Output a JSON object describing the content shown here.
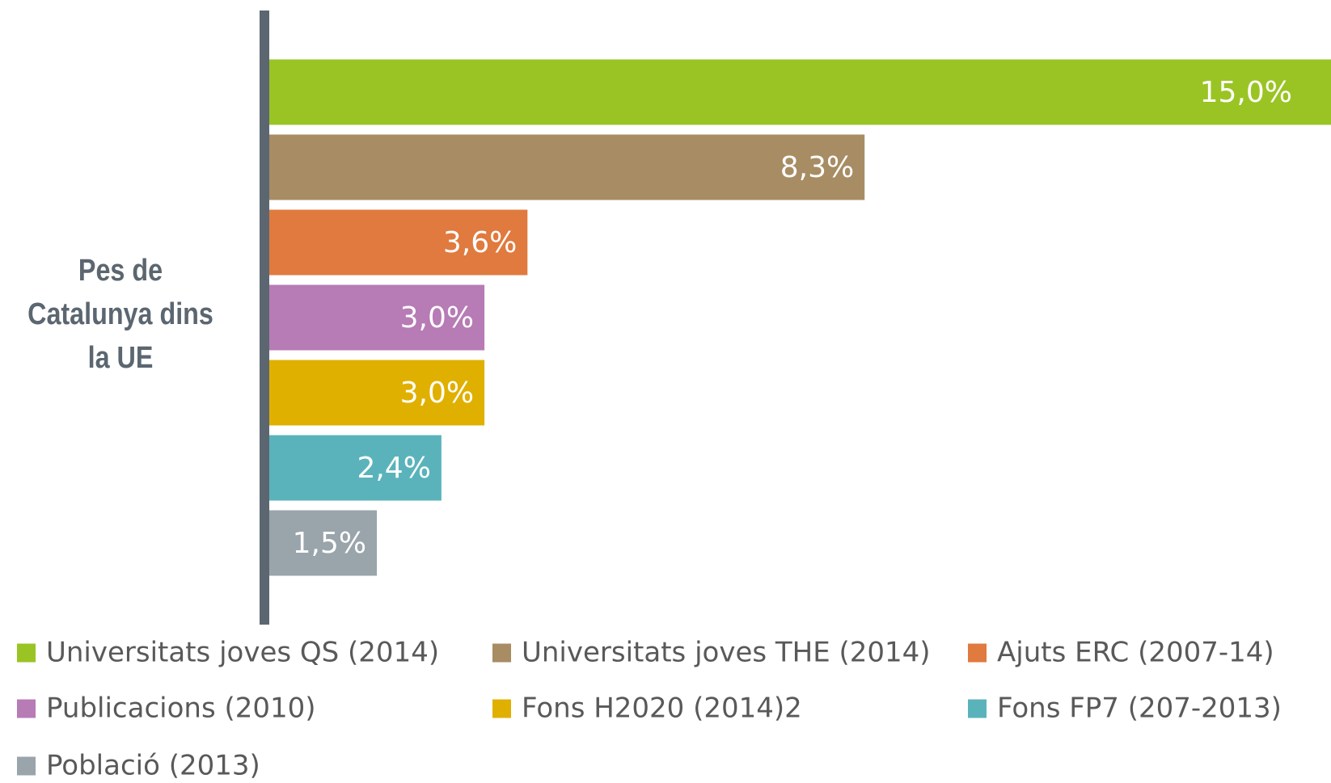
{
  "chart_data": {
    "type": "bar",
    "orientation": "horizontal",
    "y_label": "Pes de Catalunya dins la UE",
    "series": [
      {
        "name": "Universitats joves QS (2014)",
        "color": "#9ac424",
        "values": [
          15.0
        ],
        "value_labels": [
          "15,0%"
        ]
      },
      {
        "name": "Universitats joves THE (2014)",
        "color": "#a88c63",
        "values": [
          8.3
        ],
        "value_labels": [
          "8,3%"
        ]
      },
      {
        "name": "Ajuts ERC (2007-14)",
        "color": "#e07a3e",
        "values": [
          3.6
        ],
        "value_labels": [
          "3,6%"
        ]
      },
      {
        "name": "Publicacions (2010)",
        "color": "#b77bb5",
        "values": [
          3.0
        ],
        "value_labels": [
          "3,0%"
        ]
      },
      {
        "name": "Fons H2020 (2014)2",
        "color": "#e0b000",
        "values": [
          3.0
        ],
        "value_labels": [
          "3,0%"
        ]
      },
      {
        "name": "Fons FP7 (207-2013)",
        "color": "#5ab3bb",
        "values": [
          2.4
        ],
        "value_labels": [
          "2,4%"
        ]
      },
      {
        "name": "Població (2013)",
        "color": "#9aa4ab",
        "values": [
          1.5
        ],
        "value_labels": [
          "1,5%"
        ]
      }
    ]
  }
}
